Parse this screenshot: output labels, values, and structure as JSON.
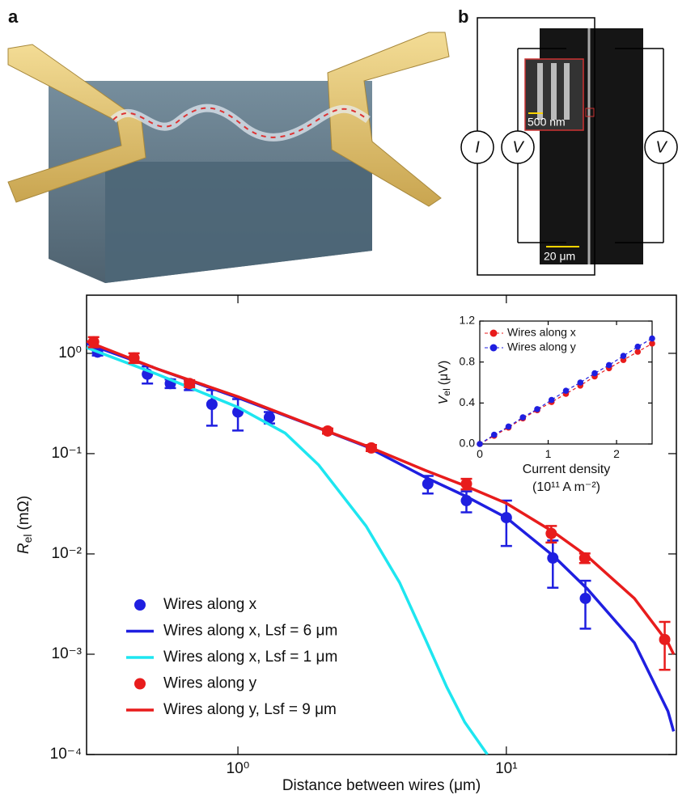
{
  "panel_a": {
    "label": "a"
  },
  "panel_b": {
    "label": "b",
    "source_labels": [
      "I",
      "V",
      "V"
    ],
    "scale_bars": [
      "500 nm",
      "20 μm"
    ]
  },
  "chart_data": [
    {
      "type": "scatter",
      "log_x": true,
      "log_y": true,
      "x_label": "Distance between wires (μm)",
      "y_label": [
        "R",
        "el",
        "(mΩ)"
      ],
      "xlim": [
        0.273,
        43
      ],
      "ylim": [
        0.0001,
        3.8
      ],
      "xticks": [
        {
          "value": 1,
          "label": "10⁰"
        },
        {
          "value": 10,
          "label": "10¹"
        }
      ],
      "yticks": [
        {
          "value": 0.0001,
          "label": "10⁻⁴"
        },
        {
          "value": 0.001,
          "label": "10⁻³"
        },
        {
          "value": 0.01,
          "label": "10⁻²"
        },
        {
          "value": 0.1,
          "label": "10⁻¹"
        },
        {
          "value": 1,
          "label": "10⁰"
        }
      ],
      "legend": "lower left",
      "series": [
        {
          "name": "Wires along x",
          "type": "points",
          "color": "#1f1fe0",
          "x": [
            0.3,
            0.46,
            0.56,
            0.66,
            0.8,
            1.0,
            1.31,
            5.1,
            7.1,
            10,
            14.9,
            19.7
          ],
          "values": [
            1.03,
            0.62,
            0.5,
            0.48,
            0.31,
            0.26,
            0.23,
            0.05,
            0.034,
            0.023,
            0.0091,
            0.0036
          ],
          "errors": [
            0.08,
            0.12,
            0.05,
            0.05,
            0.12,
            0.09,
            0.03,
            0.01,
            0.008,
            0.011,
            0.0045,
            0.0018
          ]
        },
        {
          "name": "Wires along x, Lsf = 6 μm",
          "type": "line",
          "color": "#1f1fe0",
          "x": [
            0.273,
            0.5,
            1,
            2,
            3,
            5,
            7,
            10,
            15,
            20,
            30,
            40,
            42
          ],
          "values": [
            1.25,
            0.7,
            0.36,
            0.18,
            0.118,
            0.058,
            0.038,
            0.023,
            0.0095,
            0.0045,
            0.0013,
            0.00027,
            0.00017
          ]
        },
        {
          "name": "Wires along x, Lsf = 1 μm",
          "type": "line",
          "color": "#1ee6f0",
          "x": [
            0.273,
            0.5,
            1,
            1.5,
            2,
            3,
            4,
            5,
            6,
            7,
            8.5
          ],
          "values": [
            1.14,
            0.62,
            0.29,
            0.16,
            0.077,
            0.019,
            0.0052,
            0.0014,
            0.00047,
            0.00021,
            0.0001
          ]
        },
        {
          "name": "Wires along y",
          "type": "points",
          "color": "#e81c1c",
          "x": [
            0.29,
            0.41,
            0.66,
            2.16,
            3.14,
            7.1,
            14.7,
            19.6,
            38.9
          ],
          "values": [
            1.3,
            0.9,
            0.5,
            0.168,
            0.114,
            0.05,
            0.016,
            0.0091,
            0.0014
          ],
          "errors": [
            0.15,
            0.1,
            0.04,
            0.01,
            0.008,
            0.006,
            0.003,
            0.001,
            0.0007
          ]
        },
        {
          "name": "Wires along y, Lsf = 9 μm",
          "type": "line",
          "color": "#e81c1c",
          "x": [
            0.273,
            0.5,
            1,
            2,
            3,
            5,
            7,
            10,
            15,
            20,
            30,
            40,
            42
          ],
          "values": [
            1.32,
            0.7,
            0.37,
            0.18,
            0.12,
            0.068,
            0.048,
            0.032,
            0.0165,
            0.0095,
            0.0036,
            0.0013,
            0.001
          ]
        }
      ]
    },
    {
      "type": "line",
      "x_label": [
        "Current density",
        "(10¹¹ A m⁻²)"
      ],
      "y_label": [
        "V",
        "el",
        "(μV)"
      ],
      "xlim": [
        0,
        2.52
      ],
      "ylim": [
        0,
        1.2
      ],
      "xticks": [
        0,
        1,
        2
      ],
      "yticks": [
        {
          "value": 0,
          "label": "0.0"
        },
        0.4,
        0.8,
        1.2
      ],
      "legend": "upper left",
      "series": [
        {
          "name": "Wires along x",
          "color": "#e81c1c",
          "x": [
            0,
            0.21,
            0.42,
            0.63,
            0.84,
            1.05,
            1.26,
            1.47,
            1.68,
            1.89,
            2.1,
            2.31,
            2.52
          ],
          "values": [
            0,
            0.08,
            0.16,
            0.25,
            0.33,
            0.41,
            0.49,
            0.57,
            0.66,
            0.74,
            0.82,
            0.9,
            0.98
          ]
        },
        {
          "name": "Wires along y",
          "color": "#1f1fe0",
          "x": [
            0,
            0.21,
            0.42,
            0.63,
            0.84,
            1.05,
            1.26,
            1.47,
            1.68,
            1.89,
            2.1,
            2.31,
            2.52
          ],
          "values": [
            0,
            0.09,
            0.17,
            0.26,
            0.34,
            0.43,
            0.52,
            0.6,
            0.69,
            0.77,
            0.86,
            0.95,
            1.03
          ]
        }
      ]
    }
  ]
}
